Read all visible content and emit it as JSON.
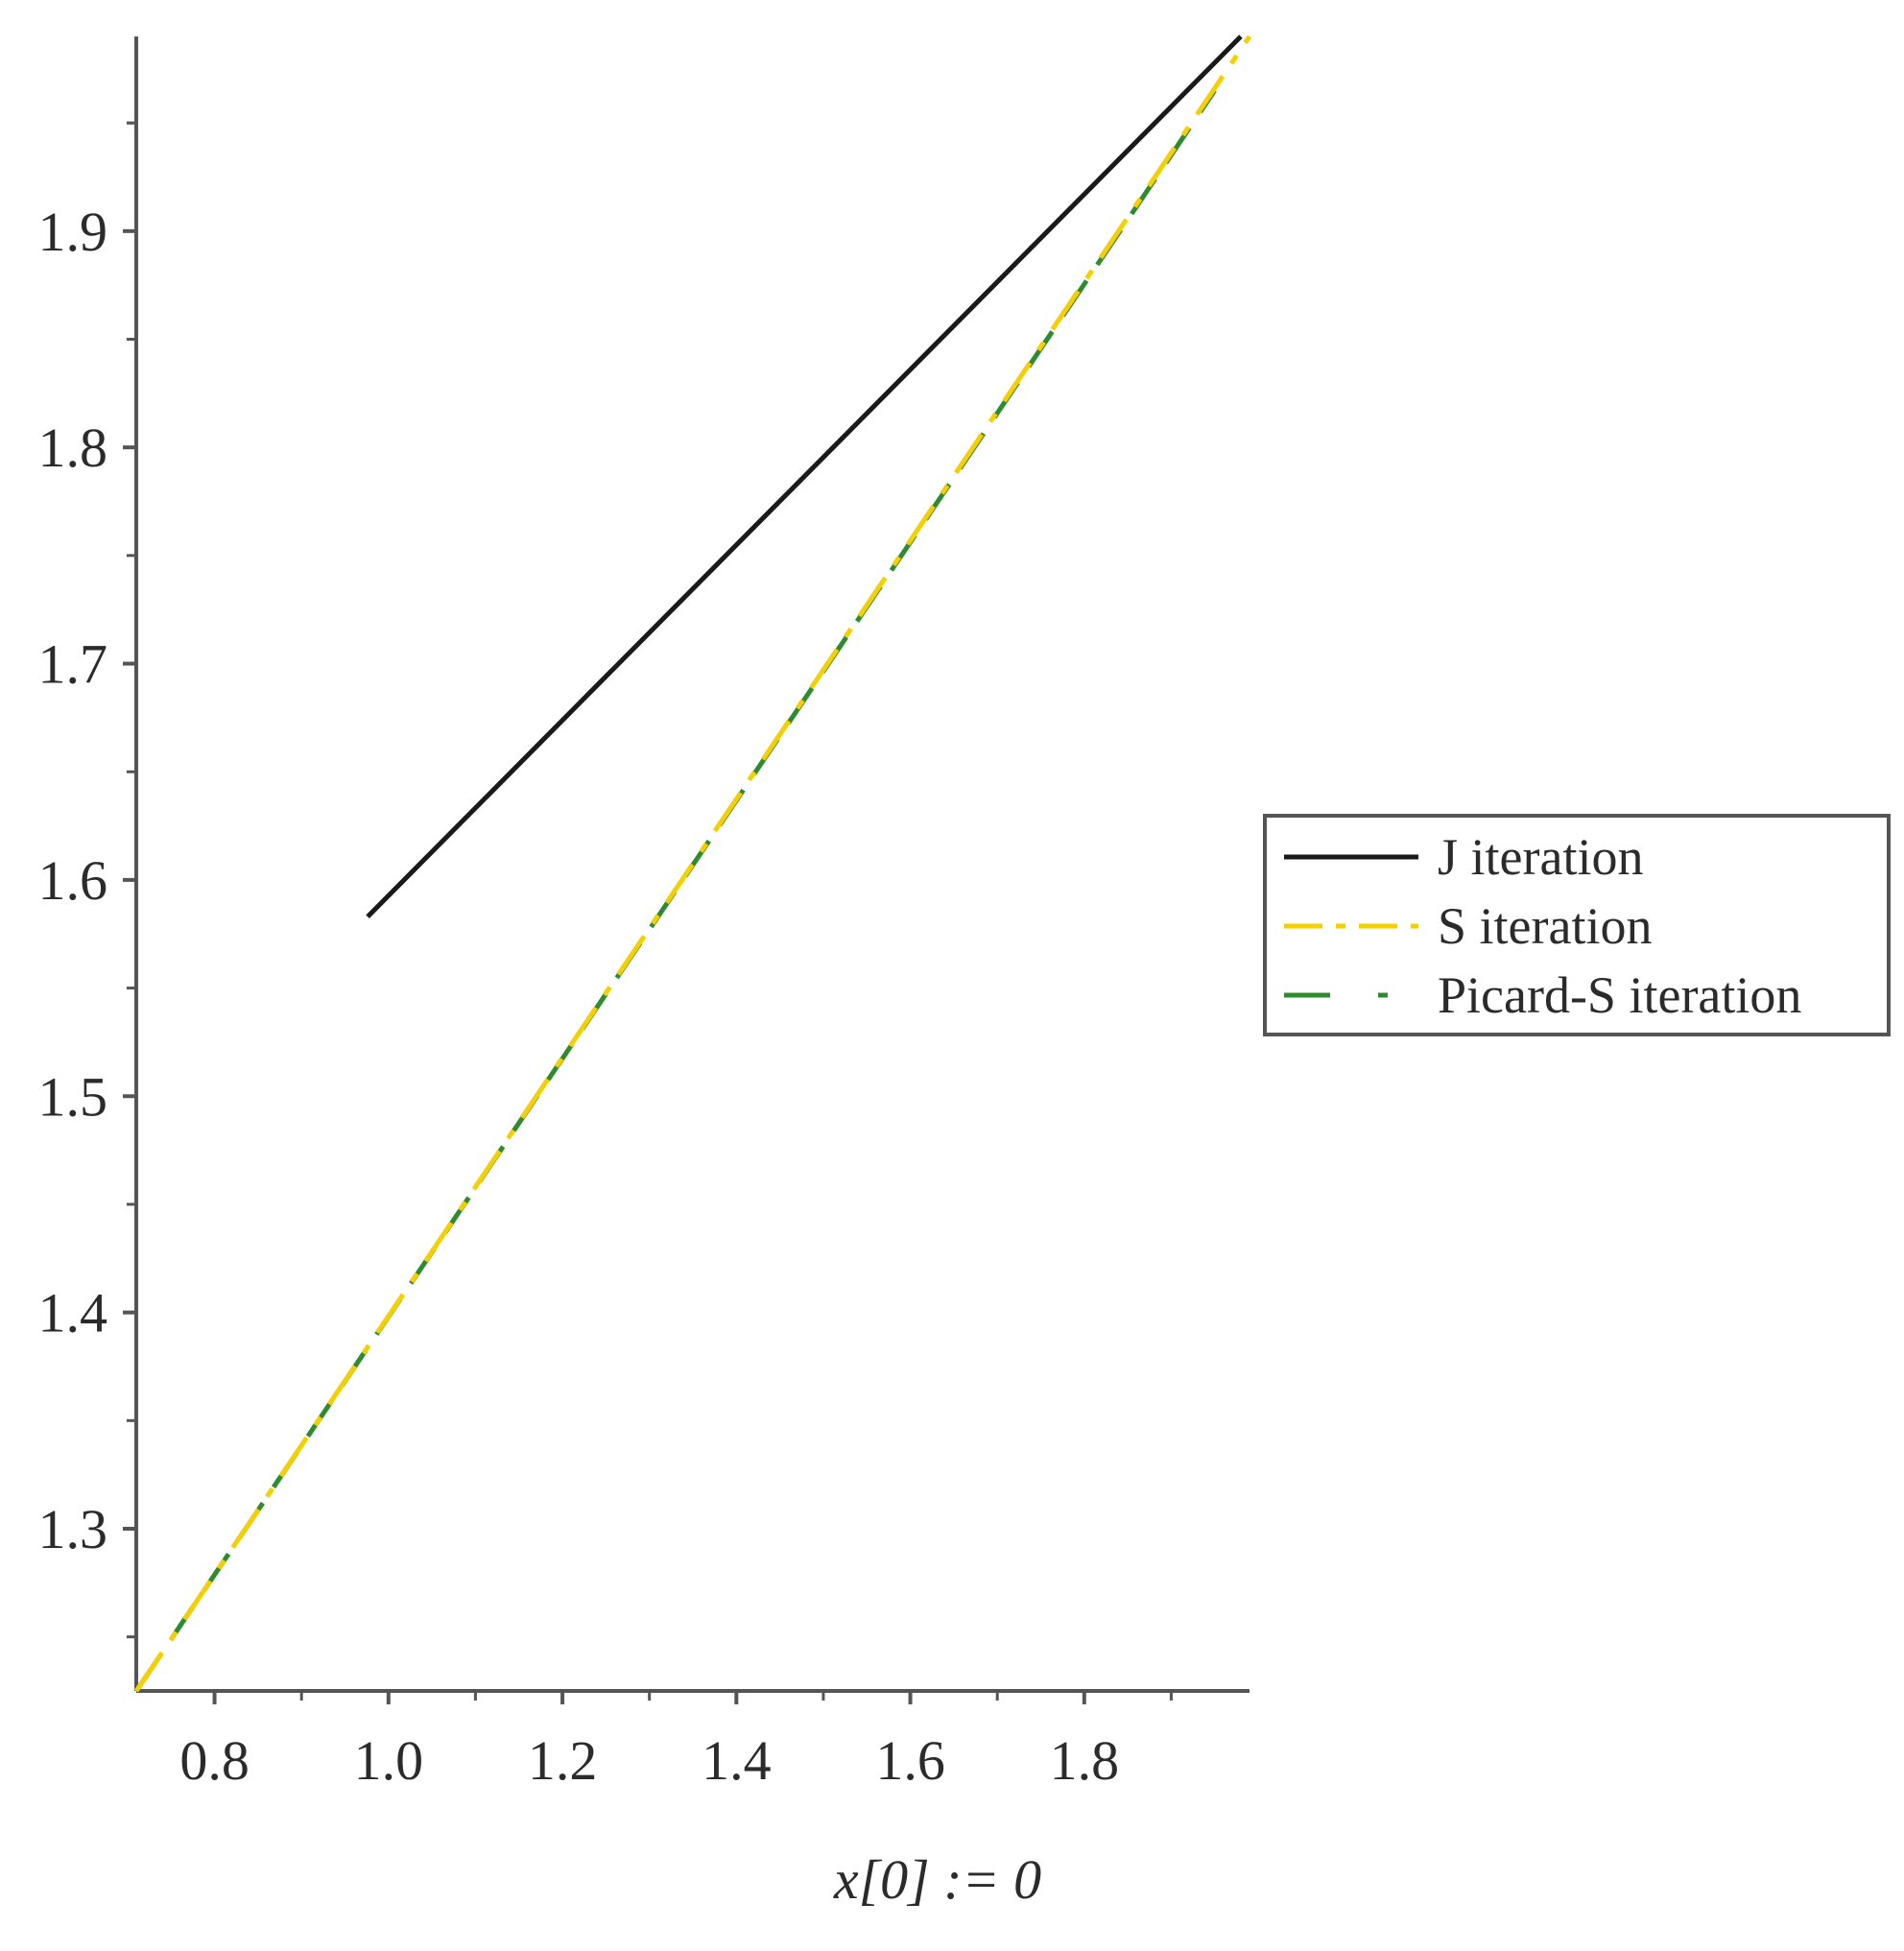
{
  "chart_data": {
    "type": "line",
    "xlabel": "x[0] := 0",
    "ylabel": "",
    "xlim": [
      0.71,
      1.99
    ],
    "ylim": [
      1.225,
      1.99
    ],
    "x_ticks": [
      0.8,
      1.0,
      1.2,
      1.4,
      1.6,
      1.8
    ],
    "x_tick_labels": [
      "0.8",
      "1.0",
      "1.2",
      "1.4",
      "1.6",
      "1.8"
    ],
    "y_ticks": [
      1.3,
      1.4,
      1.5,
      1.6,
      1.7,
      1.8,
      1.9
    ],
    "y_tick_labels": [
      "1.3",
      "1.4",
      "1.5",
      "1.6",
      "1.7",
      "1.8",
      "1.9"
    ],
    "grid": false,
    "legend_position": "right",
    "series": [
      {
        "name": "J iteration",
        "color": "#1a1a1a",
        "style": "solid",
        "x": [
          0.976,
          1.98
        ],
        "y": [
          1.583,
          1.99
        ]
      },
      {
        "name": "S iteration",
        "color": "#f5d000",
        "style": "dashdot",
        "x": [
          0.71,
          1.99
        ],
        "y": [
          1.225,
          1.99
        ]
      },
      {
        "name": "Picard-S iteration",
        "color": "#2e8b2e",
        "style": "longdash",
        "x": [
          0.71,
          1.95
        ],
        "y": [
          1.225,
          1.965
        ]
      }
    ]
  }
}
